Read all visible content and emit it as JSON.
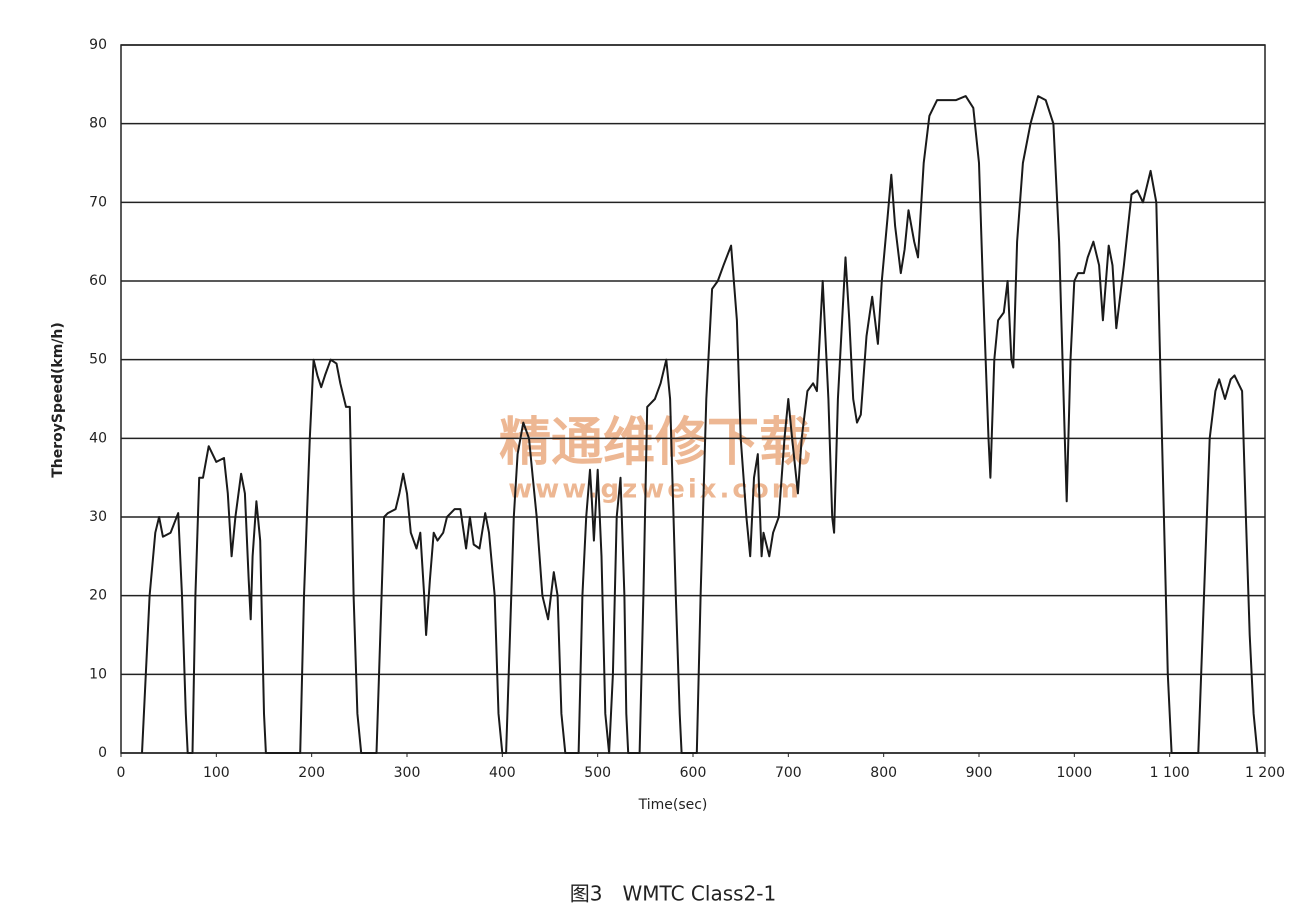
{
  "chart_data": {
    "type": "line",
    "title": "图3　WMTC Class2-1",
    "x_label": "Time(sec)",
    "y_label": "TheroySpeed(km/h)",
    "annotations": [
      "精通维修下载",
      "www.gzweix.com"
    ],
    "xlim": [
      0,
      1200
    ],
    "ylim": [
      0,
      90
    ],
    "xticks": [
      0,
      100,
      200,
      300,
      400,
      500,
      600,
      700,
      800,
      900,
      1000,
      {
        "value": 1100,
        "label": "1 100"
      },
      {
        "value": 1200,
        "label": "1 200"
      }
    ],
    "yticks": [
      0,
      10,
      20,
      30,
      40,
      50,
      60,
      70,
      80,
      90
    ],
    "grid": true,
    "series": [
      {
        "color": "#1a1a1a",
        "x": [
          22,
          30,
          36,
          40,
          44,
          52,
          60,
          64,
          68,
          70,
          75,
          78,
          82,
          86,
          92,
          100,
          108,
          112,
          116,
          120,
          126,
          130,
          134,
          136,
          138,
          142,
          146,
          150,
          152,
          188,
          192,
          198,
          202,
          206,
          210,
          214,
          220,
          226,
          230,
          236,
          240,
          244,
          248,
          252,
          268,
          272,
          276,
          280,
          288,
          292,
          296,
          300,
          304,
          310,
          314,
          318,
          320,
          324,
          328,
          332,
          338,
          342,
          350,
          356,
          362,
          366,
          370,
          376,
          382,
          386,
          392,
          396,
          400,
          404,
          408,
          412,
          416,
          422,
          428,
          432,
          436,
          442,
          448,
          454,
          458,
          462,
          466,
          480,
          484,
          488,
          492,
          494,
          496,
          500,
          504,
          508,
          512,
          516,
          520,
          524,
          528,
          530,
          532,
          544,
          548,
          552,
          560,
          566,
          572,
          576,
          582,
          586,
          588,
          604,
          608,
          614,
          620,
          626,
          632,
          640,
          646,
          650,
          656,
          660,
          664,
          668,
          672,
          674,
          680,
          684,
          690,
          696,
          700,
          704,
          710,
          714,
          720,
          726,
          730,
          736,
          742,
          746,
          748,
          752,
          760,
          764,
          768,
          772,
          776,
          782,
          788,
          794,
          798,
          804,
          808,
          812,
          818,
          822,
          826,
          832,
          836,
          842,
          848,
          856,
          866,
          876,
          886,
          894,
          900,
          904,
          910,
          912,
          916,
          920,
          926,
          930,
          934,
          936,
          940,
          946,
          954,
          962,
          970,
          978,
          984,
          990,
          992,
          996,
          1000,
          1004,
          1010,
          1014,
          1020,
          1026,
          1030,
          1036,
          1040,
          1044,
          1048,
          1052,
          1060,
          1066,
          1072,
          1080,
          1086,
          1092,
          1098,
          1102,
          1130,
          1136,
          1142,
          1148,
          1152,
          1158,
          1164,
          1168,
          1172,
          1176,
          1180,
          1184,
          1188,
          1192
        ],
        "values": [
          0,
          20,
          28,
          30,
          27.5,
          28,
          30.5,
          20,
          5,
          0,
          0,
          20,
          35,
          35,
          39,
          37,
          37.5,
          33,
          25,
          30,
          35.5,
          33,
          22,
          17,
          25,
          32,
          27,
          5,
          0,
          0,
          20,
          40,
          50,
          48,
          46.5,
          48,
          50,
          49.5,
          47,
          44,
          44,
          20,
          5,
          0,
          0,
          15,
          30,
          30.5,
          31,
          33,
          35.5,
          33,
          28,
          26,
          28,
          20,
          15,
          22,
          28,
          27,
          28,
          30,
          31,
          31,
          26,
          30,
          26.5,
          26,
          30.5,
          28,
          20,
          5,
          0,
          0,
          15,
          30,
          38,
          42,
          40,
          35,
          30,
          20,
          17,
          23,
          20,
          5,
          0,
          0,
          20,
          30,
          36,
          32,
          27,
          36,
          25,
          5,
          0,
          10,
          30,
          35,
          20,
          5,
          0,
          0,
          20,
          44,
          45,
          47,
          50,
          45,
          20,
          5,
          0,
          0,
          20,
          45,
          59,
          60,
          62,
          64.5,
          55,
          40,
          30,
          25,
          35,
          38,
          25,
          28,
          25,
          28,
          30,
          40,
          45,
          40,
          33,
          40,
          46,
          47,
          46,
          60,
          45,
          30,
          28,
          45,
          63,
          55,
          45,
          42,
          43,
          53,
          58,
          52,
          60,
          68,
          73.5,
          67,
          61,
          64,
          69,
          65,
          63,
          75,
          81,
          83,
          83,
          83,
          83.5,
          82,
          75,
          60,
          40,
          35,
          50,
          55,
          56,
          60,
          50,
          49,
          65,
          75,
          80,
          83.5,
          83,
          80,
          65,
          40,
          32,
          50,
          60,
          61,
          61,
          63,
          65,
          62,
          55,
          64.5,
          62,
          54,
          58,
          62,
          71,
          71.5,
          70,
          74,
          70,
          40,
          10,
          0,
          0,
          20,
          40,
          46,
          47.5,
          45,
          47.5,
          48,
          47,
          46,
          30,
          15,
          5,
          0
        ]
      }
    ]
  }
}
